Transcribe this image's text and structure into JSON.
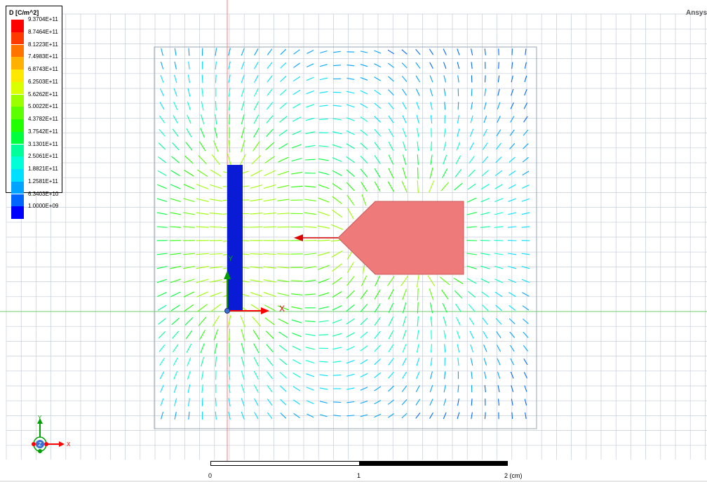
{
  "app": {
    "brand": "Ansys"
  },
  "legend": {
    "title": "D [C/m^2]",
    "entries": [
      {
        "value": "9.3704E+11",
        "color": "#ff0000"
      },
      {
        "value": "8.7464E+11",
        "color": "#ff3a00"
      },
      {
        "value": "8.1223E+11",
        "color": "#ff7400"
      },
      {
        "value": "7.4983E+11",
        "color": "#ffb000"
      },
      {
        "value": "6.8743E+11",
        "color": "#ffe800"
      },
      {
        "value": "6.2503E+11",
        "color": "#d9ff00"
      },
      {
        "value": "5.6262E+11",
        "color": "#9cff00"
      },
      {
        "value": "5.0022E+11",
        "color": "#5dff00"
      },
      {
        "value": "4.3782E+11",
        "color": "#21ff00"
      },
      {
        "value": "3.7542E+11",
        "color": "#00ff3c"
      },
      {
        "value": "3.1301E+11",
        "color": "#00ff9a"
      },
      {
        "value": "2.5061E+11",
        "color": "#00ffd6"
      },
      {
        "value": "1.8821E+11",
        "color": "#00dfff"
      },
      {
        "value": "1.2581E+11",
        "color": "#00a4ff"
      },
      {
        "value": "6.3403E+10",
        "color": "#0066ff"
      },
      {
        "value": "1.0000E+09",
        "color": "#0000ff"
      }
    ]
  },
  "axes": {
    "x_label": "X",
    "y_label": "Y",
    "z_label": "Z"
  },
  "triad": {
    "x": "X",
    "y": "Y",
    "z": "Z"
  },
  "scale_bar": {
    "labels": [
      "0",
      "1",
      "2 (cm)"
    ]
  },
  "colors": {
    "grid": "#c5cdd8",
    "bar_conductor": "#0a1bd6",
    "pentagon_conductor": "#ef7a7a",
    "x_axis": "#ff0000",
    "y_axis": "#00a000",
    "max_arrow": "#dd0000"
  }
}
